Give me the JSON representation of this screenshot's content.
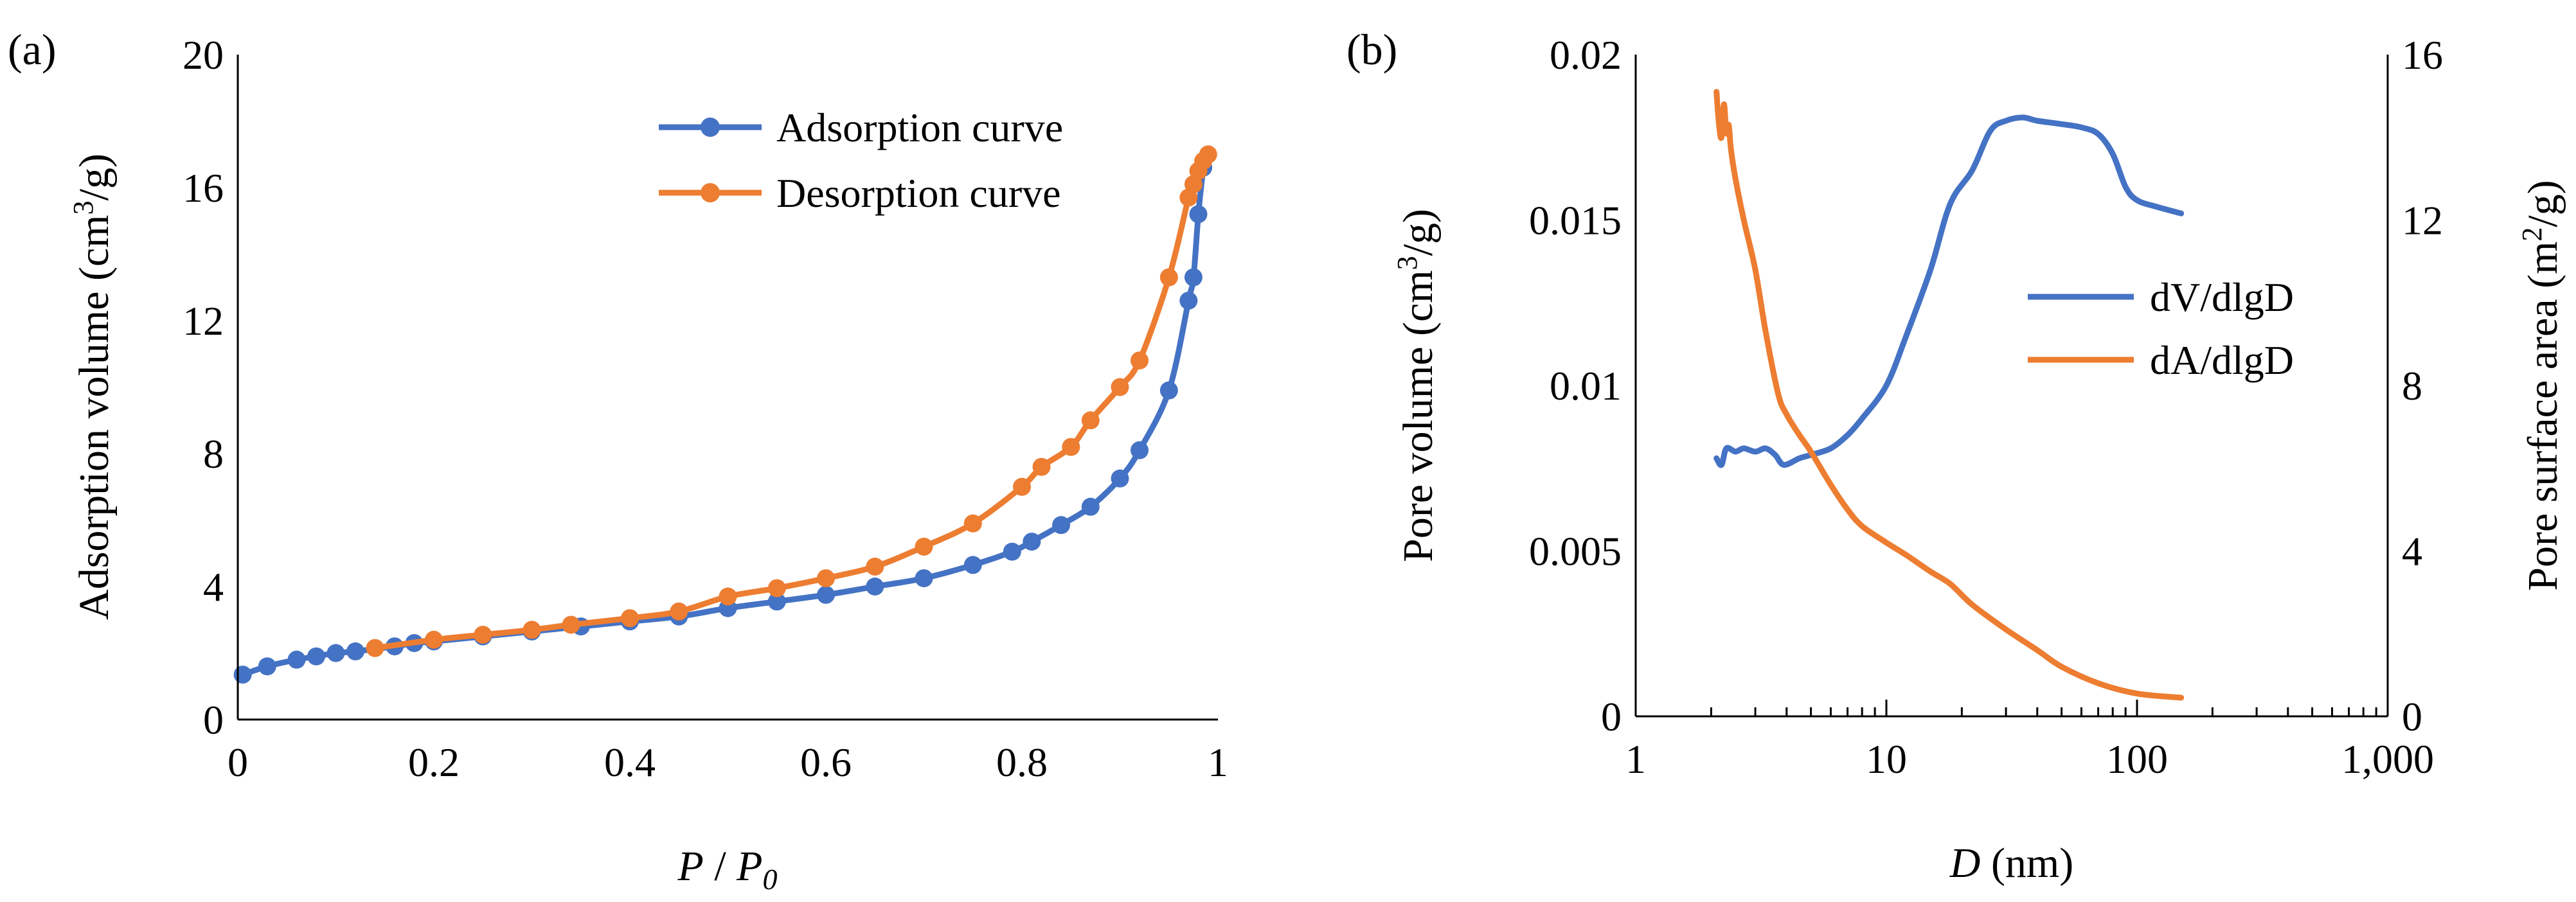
{
  "colors": {
    "blue": "#4472C4",
    "orange": "#ED7D31",
    "axis": "#000000"
  },
  "chart_data": [
    {
      "type": "line",
      "panel_label": "(a)",
      "xlabel": "P / P0",
      "xlabel_parts": {
        "var": "P",
        "sep": " / ",
        "var2": "P",
        "sub": "0"
      },
      "ylabel": "Adsorption volume (cm3/g)",
      "ylabel_parts": {
        "main": "Adsorption volume (cm",
        "sup": "3",
        "tail": "/g)"
      },
      "xlim": [
        0,
        1
      ],
      "ylim": [
        0,
        20
      ],
      "xticks": [
        0,
        0.2,
        0.4,
        0.6,
        0.8,
        1
      ],
      "xtick_labels": [
        "0",
        "0.2",
        "0.4",
        "0.6",
        "0.8",
        "1"
      ],
      "yticks": [
        0,
        4,
        8,
        12,
        16,
        20
      ],
      "ytick_labels": [
        "0",
        "4",
        "8",
        "12",
        "16",
        "20"
      ],
      "grid": false,
      "legend": "top-right",
      "series": [
        {
          "name": "Adsorption curve",
          "color": "#4472C4",
          "markers": true,
          "x": [
            0.005,
            0.03,
            0.06,
            0.08,
            0.1,
            0.12,
            0.16,
            0.18,
            0.2,
            0.25,
            0.3,
            0.35,
            0.4,
            0.45,
            0.5,
            0.55,
            0.6,
            0.65,
            0.7,
            0.75,
            0.79,
            0.81,
            0.84,
            0.87,
            0.9,
            0.92,
            0.95,
            0.97,
            0.975,
            0.98,
            0.985
          ],
          "y": [
            1.35,
            1.6,
            1.8,
            1.9,
            2.0,
            2.05,
            2.2,
            2.3,
            2.35,
            2.5,
            2.65,
            2.8,
            2.95,
            3.1,
            3.35,
            3.55,
            3.75,
            4.0,
            4.25,
            4.65,
            5.05,
            5.35,
            5.85,
            6.4,
            7.25,
            8.1,
            9.9,
            12.6,
            13.3,
            15.2,
            16.6
          ]
        },
        {
          "name": "Desorption curve",
          "color": "#ED7D31",
          "markers": true,
          "x": [
            0.14,
            0.2,
            0.25,
            0.3,
            0.34,
            0.4,
            0.45,
            0.5,
            0.55,
            0.6,
            0.65,
            0.7,
            0.75,
            0.8,
            0.82,
            0.85,
            0.87,
            0.9,
            0.92,
            0.95,
            0.97,
            0.975,
            0.98,
            0.985,
            0.99
          ],
          "y": [
            2.15,
            2.4,
            2.55,
            2.7,
            2.85,
            3.05,
            3.25,
            3.7,
            3.95,
            4.25,
            4.6,
            5.2,
            5.9,
            7.0,
            7.6,
            8.2,
            9.0,
            10.0,
            10.8,
            13.3,
            15.7,
            16.1,
            16.5,
            16.8,
            17.0
          ]
        }
      ]
    },
    {
      "type": "line",
      "panel_label": "(b)",
      "xlabel": "D (nm)",
      "xlabel_parts": {
        "var": "D",
        "unit": " (nm)"
      },
      "ylabel": "Pore volume (cm3/g)",
      "ylabel_parts": {
        "main": "Pore volume (cm",
        "sup": "3",
        "tail": "/g)"
      },
      "y2label": "Pore surface area (m2/g)",
      "y2label_parts": {
        "main": "Pore surface area (m",
        "sup": "2",
        "tail": "/g)"
      },
      "xscale": "log",
      "xlim": [
        1,
        1000
      ],
      "ylim": [
        0,
        0.02
      ],
      "y2lim": [
        0,
        16
      ],
      "xticks": [
        1,
        10,
        100,
        1000
      ],
      "xtick_labels": [
        "1",
        "10",
        "100",
        "1,000"
      ],
      "yticks": [
        0,
        0.005,
        0.01,
        0.015,
        0.02
      ],
      "ytick_labels": [
        "0",
        "0.005",
        "0.01",
        "0.015",
        "0.02"
      ],
      "y2ticks": [
        0,
        4,
        8,
        12,
        16
      ],
      "y2tick_labels": [
        "0",
        "4",
        "8",
        "12",
        "16"
      ],
      "grid": false,
      "legend": "right",
      "series": [
        {
          "name": "dV/dlgD",
          "color": "#4472C4",
          "axis": "left",
          "markers": false,
          "x": [
            2.1,
            2.2,
            2.3,
            2.5,
            2.7,
            3.0,
            3.3,
            3.6,
            3.9,
            4.5,
            5.0,
            6.0,
            7.0,
            8.0,
            10,
            12,
            15,
            18,
            22,
            26,
            30,
            35,
            40,
            50,
            60,
            70,
            80,
            90,
            100,
            120,
            150
          ],
          "y": [
            0.0078,
            0.0076,
            0.0081,
            0.008,
            0.0081,
            0.008,
            0.0081,
            0.0079,
            0.0076,
            0.0078,
            0.0079,
            0.0081,
            0.0085,
            0.009,
            0.01,
            0.0115,
            0.0135,
            0.0155,
            0.0165,
            0.0177,
            0.018,
            0.0181,
            0.018,
            0.0179,
            0.0178,
            0.0176,
            0.017,
            0.016,
            0.0156,
            0.0154,
            0.0152
          ]
        },
        {
          "name": "dA/dlgD",
          "color": "#ED7D31",
          "axis": "right",
          "markers": false,
          "x": [
            2.1,
            2.15,
            2.2,
            2.25,
            2.3,
            2.35,
            2.4,
            2.5,
            2.7,
            3.0,
            3.3,
            3.7,
            4.0,
            4.5,
            5.0,
            6.0,
            7.0,
            8.0,
            10,
            12,
            15,
            18,
            22,
            30,
            40,
            50,
            70,
            100,
            150
          ],
          "y": [
            15.1,
            14.3,
            14.0,
            14.8,
            14.1,
            14.3,
            13.7,
            13.0,
            12.0,
            10.8,
            9.3,
            7.8,
            7.3,
            6.8,
            6.4,
            5.6,
            5.0,
            4.6,
            4.2,
            3.9,
            3.5,
            3.2,
            2.7,
            2.1,
            1.6,
            1.2,
            0.8,
            0.55,
            0.45
          ]
        }
      ]
    }
  ]
}
